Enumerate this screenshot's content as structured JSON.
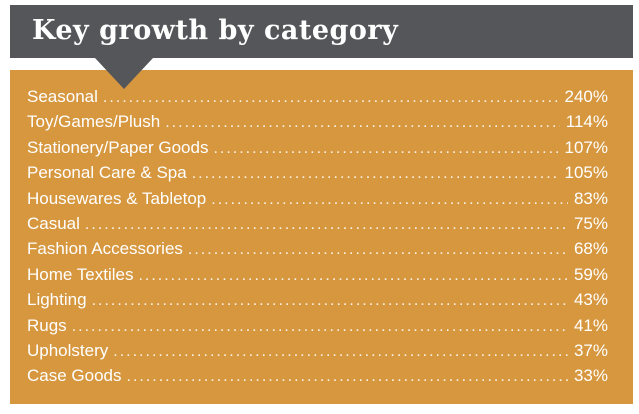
{
  "header": {
    "title": "Key growth by category"
  },
  "panel": {
    "items": [
      {
        "label": "Seasonal",
        "value": "240%"
      },
      {
        "label": "Toy/Games/Plush",
        "value": "114%"
      },
      {
        "label": "Stationery/Paper Goods",
        "value": "107%"
      },
      {
        "label": "Personal Care & Spa",
        "value": "105%"
      },
      {
        "label": "Housewares & Tabletop",
        "value": "83%"
      },
      {
        "label": "Casual",
        "value": "75%"
      },
      {
        "label": "Fashion Accessories",
        "value": "68%"
      },
      {
        "label": "Home Textiles",
        "value": "59%"
      },
      {
        "label": "Lighting",
        "value": "43%"
      },
      {
        "label": "Rugs",
        "value": "41%"
      },
      {
        "label": "Upholstery",
        "value": "37%"
      },
      {
        "label": "Case Goods",
        "value": "33%"
      }
    ]
  },
  "colors": {
    "header_bg": "#54565A",
    "panel_bg": "#D6973F",
    "text": "#FFFFFF"
  },
  "chart_data": {
    "type": "table",
    "title": "Key growth by category",
    "categories": [
      "Seasonal",
      "Toy/Games/Plush",
      "Stationery/Paper Goods",
      "Personal Care & Spa",
      "Housewares & Tabletop",
      "Casual",
      "Fashion Accessories",
      "Home Textiles",
      "Lighting",
      "Rugs",
      "Upholstery",
      "Case Goods"
    ],
    "values": [
      240,
      114,
      107,
      105,
      83,
      75,
      68,
      59,
      43,
      41,
      37,
      33
    ],
    "unit": "%",
    "sort": "descending"
  }
}
